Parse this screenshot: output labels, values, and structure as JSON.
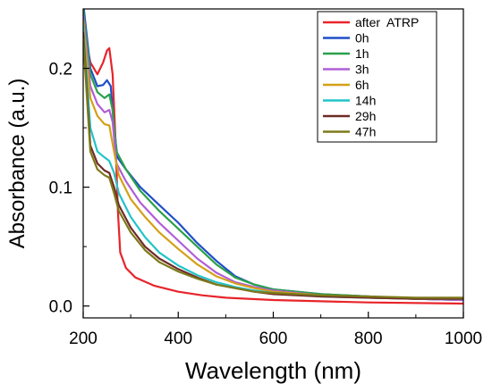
{
  "chart_data": {
    "type": "line",
    "title": "",
    "xlabel": "Wavelength (nm)",
    "ylabel": "Absorbance (a.u.)",
    "xlim": [
      200,
      1000
    ],
    "ylim": [
      -0.01,
      0.25
    ],
    "x_ticks": [
      200,
      400,
      600,
      800,
      1000
    ],
    "y_ticks": [
      0.0,
      0.1,
      0.2
    ],
    "x_tick_labels": [
      "200",
      "400",
      "600",
      "800",
      "1000"
    ],
    "y_tick_labels": [
      "0.0",
      "0.1",
      "0.2"
    ],
    "grid": false,
    "legend_position": "top-right",
    "series": [
      {
        "name": "after  ATRP",
        "color": "#e8242a",
        "points": [
          [
            200,
            0.235
          ],
          [
            215,
            0.205
          ],
          [
            230,
            0.195
          ],
          [
            242,
            0.205
          ],
          [
            250,
            0.215
          ],
          [
            255,
            0.217
          ],
          [
            262,
            0.195
          ],
          [
            268,
            0.14
          ],
          [
            273,
            0.08
          ],
          [
            278,
            0.045
          ],
          [
            290,
            0.032
          ],
          [
            310,
            0.024
          ],
          [
            350,
            0.017
          ],
          [
            400,
            0.012
          ],
          [
            450,
            0.009
          ],
          [
            500,
            0.007
          ],
          [
            600,
            0.005
          ],
          [
            700,
            0.004
          ],
          [
            800,
            0.003
          ],
          [
            1000,
            0.002
          ]
        ]
      },
      {
        "name": "0h",
        "color": "#1f4fc9",
        "points": [
          [
            200,
            0.255
          ],
          [
            215,
            0.2
          ],
          [
            230,
            0.185
          ],
          [
            242,
            0.186
          ],
          [
            250,
            0.19
          ],
          [
            258,
            0.185
          ],
          [
            265,
            0.15
          ],
          [
            272,
            0.125
          ],
          [
            290,
            0.115
          ],
          [
            320,
            0.1
          ],
          [
            360,
            0.085
          ],
          [
            400,
            0.07
          ],
          [
            440,
            0.053
          ],
          [
            480,
            0.038
          ],
          [
            520,
            0.025
          ],
          [
            560,
            0.018
          ],
          [
            600,
            0.014
          ],
          [
            700,
            0.01
          ],
          [
            800,
            0.008
          ],
          [
            900,
            0.006
          ],
          [
            1000,
            0.005
          ]
        ]
      },
      {
        "name": "1h",
        "color": "#2aa04a",
        "points": [
          [
            200,
            0.25
          ],
          [
            215,
            0.195
          ],
          [
            230,
            0.18
          ],
          [
            245,
            0.175
          ],
          [
            255,
            0.178
          ],
          [
            262,
            0.165
          ],
          [
            270,
            0.13
          ],
          [
            290,
            0.115
          ],
          [
            320,
            0.097
          ],
          [
            360,
            0.08
          ],
          [
            400,
            0.065
          ],
          [
            440,
            0.05
          ],
          [
            480,
            0.035
          ],
          [
            520,
            0.024
          ],
          [
            560,
            0.018
          ],
          [
            600,
            0.014
          ],
          [
            700,
            0.01
          ],
          [
            800,
            0.008
          ],
          [
            900,
            0.006
          ],
          [
            1000,
            0.005
          ]
        ]
      },
      {
        "name": "3h",
        "color": "#b05ed6",
        "points": [
          [
            200,
            0.245
          ],
          [
            215,
            0.185
          ],
          [
            230,
            0.17
          ],
          [
            245,
            0.163
          ],
          [
            255,
            0.165
          ],
          [
            262,
            0.155
          ],
          [
            270,
            0.12
          ],
          [
            290,
            0.105
          ],
          [
            320,
            0.087
          ],
          [
            360,
            0.07
          ],
          [
            400,
            0.055
          ],
          [
            440,
            0.04
          ],
          [
            480,
            0.028
          ],
          [
            520,
            0.02
          ],
          [
            560,
            0.016
          ],
          [
            600,
            0.013
          ],
          [
            700,
            0.009
          ],
          [
            800,
            0.007
          ],
          [
            900,
            0.006
          ],
          [
            1000,
            0.005
          ]
        ]
      },
      {
        "name": "6h",
        "color": "#d4a017",
        "points": [
          [
            200,
            0.24
          ],
          [
            215,
            0.175
          ],
          [
            230,
            0.16
          ],
          [
            245,
            0.153
          ],
          [
            255,
            0.152
          ],
          [
            265,
            0.13
          ],
          [
            275,
            0.11
          ],
          [
            300,
            0.09
          ],
          [
            330,
            0.075
          ],
          [
            360,
            0.062
          ],
          [
            400,
            0.048
          ],
          [
            440,
            0.035
          ],
          [
            480,
            0.025
          ],
          [
            520,
            0.019
          ],
          [
            560,
            0.015
          ],
          [
            600,
            0.012
          ],
          [
            700,
            0.009
          ],
          [
            800,
            0.007
          ],
          [
            900,
            0.006
          ],
          [
            1000,
            0.006
          ]
        ]
      },
      {
        "name": "14h",
        "color": "#22c4c8",
        "points": [
          [
            200,
            0.235
          ],
          [
            215,
            0.15
          ],
          [
            230,
            0.13
          ],
          [
            245,
            0.125
          ],
          [
            255,
            0.122
          ],
          [
            265,
            0.112
          ],
          [
            275,
            0.095
          ],
          [
            300,
            0.075
          ],
          [
            330,
            0.058
          ],
          [
            360,
            0.045
          ],
          [
            400,
            0.034
          ],
          [
            440,
            0.026
          ],
          [
            480,
            0.02
          ],
          [
            520,
            0.016
          ],
          [
            560,
            0.013
          ],
          [
            600,
            0.011
          ],
          [
            700,
            0.008
          ],
          [
            800,
            0.007
          ],
          [
            900,
            0.006
          ],
          [
            1000,
            0.006
          ]
        ]
      },
      {
        "name": "29h",
        "color": "#6e2b26",
        "points": [
          [
            200,
            0.23
          ],
          [
            215,
            0.135
          ],
          [
            230,
            0.12
          ],
          [
            245,
            0.114
          ],
          [
            255,
            0.112
          ],
          [
            265,
            0.1
          ],
          [
            275,
            0.085
          ],
          [
            300,
            0.066
          ],
          [
            330,
            0.05
          ],
          [
            360,
            0.04
          ],
          [
            400,
            0.031
          ],
          [
            440,
            0.024
          ],
          [
            480,
            0.018
          ],
          [
            520,
            0.015
          ],
          [
            560,
            0.012
          ],
          [
            600,
            0.01
          ],
          [
            700,
            0.008
          ],
          [
            800,
            0.007
          ],
          [
            900,
            0.006
          ],
          [
            1000,
            0.006
          ]
        ]
      },
      {
        "name": "47h",
        "color": "#7d7a1a",
        "points": [
          [
            200,
            0.225
          ],
          [
            215,
            0.13
          ],
          [
            230,
            0.115
          ],
          [
            245,
            0.11
          ],
          [
            255,
            0.108
          ],
          [
            265,
            0.095
          ],
          [
            275,
            0.08
          ],
          [
            300,
            0.062
          ],
          [
            330,
            0.047
          ],
          [
            360,
            0.037
          ],
          [
            400,
            0.029
          ],
          [
            440,
            0.023
          ],
          [
            480,
            0.018
          ],
          [
            520,
            0.015
          ],
          [
            560,
            0.012
          ],
          [
            600,
            0.011
          ],
          [
            700,
            0.009
          ],
          [
            800,
            0.008
          ],
          [
            900,
            0.007
          ],
          [
            1000,
            0.007
          ]
        ]
      }
    ]
  }
}
